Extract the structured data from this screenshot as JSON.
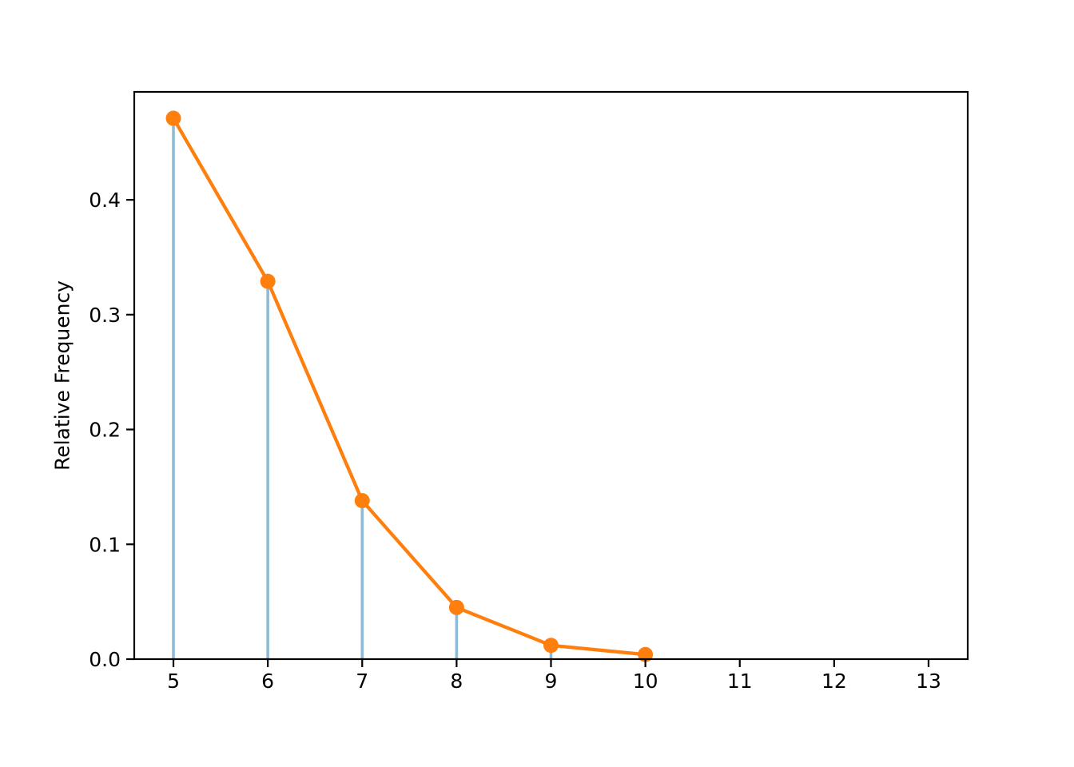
{
  "figure": {
    "background": "#ffffff"
  },
  "chart_data": {
    "type": "stem",
    "title": "",
    "xlabel": "",
    "ylabel": "Relative Frequency",
    "x": [
      5,
      6,
      7,
      8,
      9,
      10
    ],
    "values": [
      0.471,
      0.329,
      0.138,
      0.045,
      0.012,
      0.004
    ],
    "xticks": [
      5,
      6,
      7,
      8,
      9,
      10,
      11,
      12,
      13
    ],
    "ytick_values": [
      0.0,
      0.1,
      0.2,
      0.3,
      0.4
    ],
    "ytick_labels": [
      "0.0",
      "0.1",
      "0.2",
      "0.3",
      "0.4"
    ],
    "xlim": [
      4.585,
      13.415
    ],
    "ylim": [
      0,
      0.494
    ],
    "grid": false,
    "legend": null,
    "line_between_markers": true,
    "colors": {
      "stem": "#8fbbd9",
      "line": "#ff7f0e",
      "marker": "#ff7f0e",
      "axis": "#000000"
    }
  }
}
